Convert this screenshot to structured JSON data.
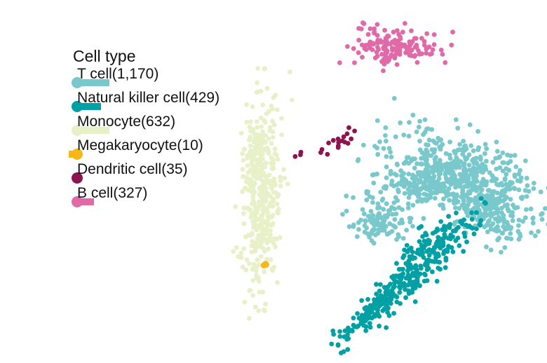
{
  "chart_data": {
    "type": "scatter",
    "title": "",
    "xlabel": "",
    "ylabel": "",
    "grid": false,
    "axes_visible": false,
    "legend": {
      "title": "Cell type",
      "placement": "top-left",
      "entries": [
        {
          "label": "T cell(1,170)",
          "color": "#78c8cc",
          "marker": "circle-with-bar"
        },
        {
          "label": "Natural killer cell(429)",
          "color": "#00a0a5",
          "marker": "circle-with-bar"
        },
        {
          "label": "Monocyte(632)",
          "color": "#e8f0c8",
          "marker": "circle-with-bar"
        },
        {
          "label": "Megakaryocyte(10)",
          "color": "#f5b819",
          "marker": "circle-with-bar"
        },
        {
          "label": "Dendritic cell(35)",
          "color": "#8c1450",
          "marker": "circle-with-bar"
        },
        {
          "label": "B cell(327)",
          "color": "#e06aa8",
          "marker": "circle-with-bar"
        }
      ]
    },
    "series": [
      {
        "name": "T cell(1,170)",
        "color": "#78c8cc",
        "count": 1170
      },
      {
        "name": "Natural killer cell(429)",
        "color": "#00a0a5",
        "count": 429
      },
      {
        "name": "Monocyte(632)",
        "color": "#e8f0c8",
        "count": 632
      },
      {
        "name": "Megakaryocyte(10)",
        "color": "#f5b819",
        "count": 10
      },
      {
        "name": "Dendritic cell(35)",
        "color": "#8c1450",
        "count": 35
      },
      {
        "name": "B cell(327)",
        "color": "#e06aa8",
        "count": 327
      }
    ]
  }
}
